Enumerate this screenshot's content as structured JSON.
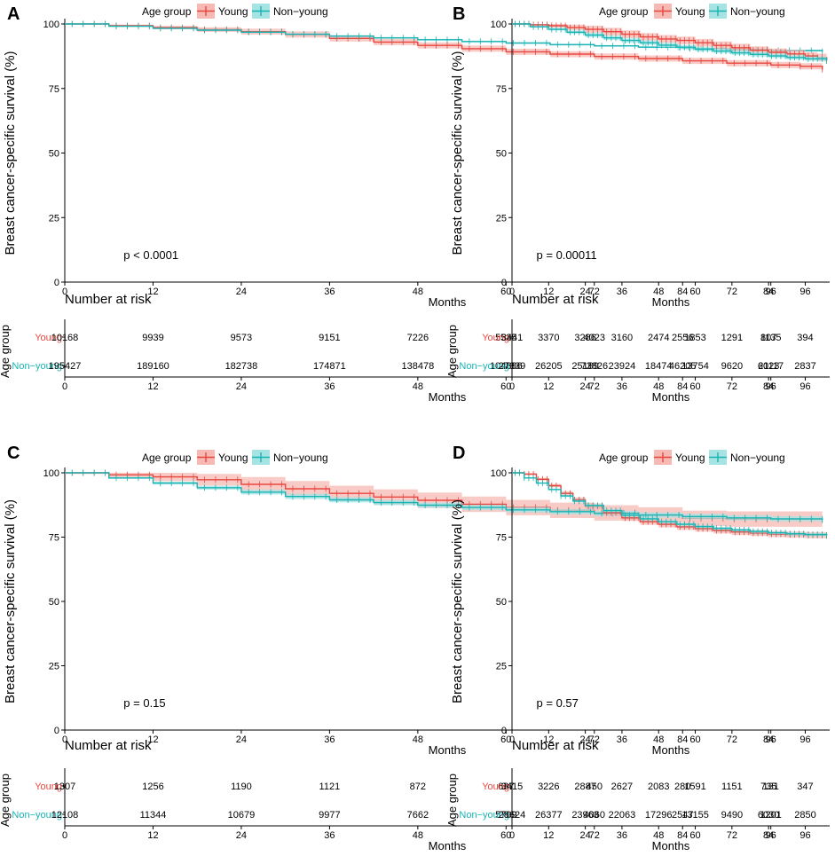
{
  "colors": {
    "young": "#E8473F",
    "young_band": "#F7B9B4",
    "nonyoung": "#18B4B4",
    "nonyoung_band": "#A6E3E3",
    "text": "#000000"
  },
  "chart_data": [
    {
      "panel_label": "A",
      "type": "line",
      "title": "",
      "xlabel": "Months",
      "ylabel": "Breast cancer-specific survival (%)",
      "xlim": [
        0,
        104
      ],
      "ylim": [
        0,
        100
      ],
      "xticks": [
        "0",
        "12",
        "24",
        "36",
        "48",
        "60",
        "72",
        "84",
        "96"
      ],
      "yticks": [
        "0",
        "25",
        "50",
        "75",
        "100"
      ],
      "legend_title": "Age group",
      "legend": [
        "Young",
        "Non−young"
      ],
      "pvalue": "p < 0.0001",
      "band": {
        "young": 1.2,
        "nonyoung": 0.3
      },
      "series": [
        {
          "name": "Young",
          "x": [
            0,
            6,
            12,
            18,
            24,
            30,
            36,
            42,
            48,
            54,
            60,
            66,
            72,
            78,
            84,
            90,
            96,
            100,
            103
          ],
          "values": [
            100,
            99.3,
            98.6,
            97.8,
            97,
            95.9,
            94.4,
            93,
            91.7,
            90.4,
            89.2,
            88.3,
            87.4,
            86.6,
            85.7,
            84.8,
            84.1,
            83.6,
            82.4
          ]
        },
        {
          "name": "Non−young",
          "x": [
            0,
            6,
            12,
            18,
            24,
            30,
            36,
            42,
            48,
            54,
            60,
            66,
            72,
            78,
            84,
            90,
            96,
            103
          ],
          "values": [
            100,
            99.1,
            98.3,
            97.6,
            96.8,
            96,
            95.3,
            94.6,
            93.9,
            93.2,
            92.6,
            92,
            91.5,
            91,
            90.5,
            90.1,
            89.7,
            89.2
          ]
        }
      ],
      "risk_title": "Number at risk",
      "risk_ylabel": "Age group",
      "risk_rows": [
        {
          "name": "Young",
          "values": [
            "10168",
            "9939",
            "9573",
            "9151",
            "7226",
            "5535",
            "4023",
            "2556",
            "1135"
          ]
        },
        {
          "name": "Non−young",
          "values": [
            "195427",
            "189160",
            "182738",
            "174871",
            "138478",
            "104886",
            "73826",
            "46205",
            "21117"
          ]
        }
      ]
    },
    {
      "panel_label": "B",
      "type": "line",
      "title": "",
      "xlabel": "Months",
      "ylabel": "Breast cancer-specific survival (%)",
      "xlim": [
        0,
        104
      ],
      "ylim": [
        0,
        100
      ],
      "xticks": [
        "0",
        "12",
        "24",
        "36",
        "48",
        "60",
        "72",
        "84",
        "96"
      ],
      "yticks": [
        "0",
        "25",
        "50",
        "75",
        "100"
      ],
      "legend_title": "Age group",
      "legend": [
        "Young",
        "Non−young"
      ],
      "pvalue": "p = 0.00011",
      "band": {
        "young": 1.5,
        "nonyoung": 0.8
      },
      "series": [
        {
          "name": "Young",
          "x": [
            0,
            6,
            12,
            18,
            24,
            30,
            36,
            42,
            48,
            54,
            60,
            66,
            72,
            78,
            84,
            90,
            96,
            100,
            103
          ],
          "values": [
            100,
            99.7,
            99.3,
            98.6,
            97.9,
            97,
            96,
            95,
            94.2,
            93.6,
            92.7,
            91.7,
            90.8,
            89.8,
            89,
            88.4,
            87.6,
            87,
            85.8
          ]
        },
        {
          "name": "Non−young",
          "x": [
            0,
            6,
            12,
            18,
            24,
            30,
            36,
            42,
            48,
            54,
            60,
            66,
            72,
            78,
            84,
            90,
            96,
            103
          ],
          "values": [
            100,
            98.9,
            97.9,
            96.8,
            95.7,
            94.6,
            93.6,
            92.7,
            91.8,
            91,
            90.2,
            89.5,
            88.8,
            88.2,
            87.6,
            87,
            86.5,
            85.8
          ]
        }
      ],
      "risk_title": "Number at risk",
      "risk_ylabel": "Age group",
      "risk_rows": [
        {
          "name": "Young",
          "values": [
            "3441",
            "3370",
            "3286",
            "3160",
            "2474",
            "1853",
            "1291",
            "807",
            "394"
          ]
        },
        {
          "name": "Non−young",
          "values": [
            "27339",
            "26205",
            "25189",
            "23924",
            "18474",
            "13754",
            "9620",
            "6023",
            "2837"
          ]
        }
      ]
    },
    {
      "panel_label": "C",
      "type": "line",
      "title": "",
      "xlabel": "Months",
      "ylabel": "Breast cancer-specific survival (%)",
      "xlim": [
        0,
        104
      ],
      "ylim": [
        0,
        100
      ],
      "xticks": [
        "0",
        "12",
        "24",
        "36",
        "48",
        "60",
        "72",
        "84",
        "96"
      ],
      "yticks": [
        "0",
        "25",
        "50",
        "75",
        "100"
      ],
      "legend_title": "Age group",
      "legend": [
        "Young",
        "Non−young"
      ],
      "pvalue": "p = 0.15",
      "band": {
        "young": 3.0,
        "nonyoung": 1.0
      },
      "series": [
        {
          "name": "Young",
          "x": [
            0,
            6,
            12,
            18,
            24,
            30,
            36,
            42,
            48,
            54,
            60,
            66,
            72,
            78,
            84,
            90,
            96,
            103
          ],
          "values": [
            100,
            99.2,
            98.4,
            97.3,
            95.5,
            93.8,
            92,
            90.6,
            89.3,
            87.8,
            86.5,
            85.4,
            84.4,
            83.6,
            82.3,
            82,
            82,
            82
          ]
        },
        {
          "name": "Non−young",
          "x": [
            0,
            6,
            12,
            18,
            24,
            30,
            36,
            42,
            48,
            54,
            60,
            66,
            72,
            78,
            84,
            90,
            96,
            103
          ],
          "values": [
            100,
            98,
            96,
            94.2,
            92.5,
            90.8,
            89.5,
            88.4,
            87.4,
            86.5,
            85.6,
            84.9,
            84.2,
            83.6,
            83,
            82.5,
            82.1,
            81.7
          ]
        }
      ],
      "risk_title": "Number at risk",
      "risk_ylabel": "Age group",
      "risk_rows": [
        {
          "name": "Young",
          "values": [
            "1307",
            "1256",
            "1190",
            "1121",
            "872",
            "637",
            "450",
            "280",
            "131"
          ]
        },
        {
          "name": "Non−young",
          "values": [
            "12108",
            "11344",
            "10679",
            "9977",
            "7662",
            "5709",
            "4060",
            "2547",
            "1201"
          ]
        }
      ]
    },
    {
      "panel_label": "D",
      "type": "line",
      "title": "",
      "xlabel": "Months",
      "ylabel": "Breast cancer-specific survival (%)",
      "xlim": [
        0,
        104
      ],
      "ylim": [
        0,
        100
      ],
      "xticks": [
        "0",
        "12",
        "24",
        "36",
        "48",
        "60",
        "72",
        "84",
        "96"
      ],
      "yticks": [
        "0",
        "25",
        "50",
        "75",
        "100"
      ],
      "legend_title": "Age group",
      "legend": [
        "Young",
        "Non−young"
      ],
      "pvalue": "p = 0.57",
      "band": {
        "young": 1.2,
        "nonyoung": 0.5
      },
      "series": [
        {
          "name": "Young",
          "x": [
            0,
            4,
            8,
            12,
            16,
            20,
            24,
            30,
            36,
            42,
            48,
            54,
            60,
            66,
            72,
            78,
            84,
            90,
            96,
            103
          ],
          "values": [
            100,
            99.5,
            97.5,
            95,
            92,
            89.5,
            87,
            84.5,
            82.5,
            81,
            80,
            79,
            78.3,
            77.6,
            77,
            76.6,
            76.2,
            76,
            75.8,
            75.6
          ]
        },
        {
          "name": "Non−young",
          "x": [
            0,
            4,
            8,
            12,
            16,
            20,
            24,
            30,
            36,
            42,
            48,
            54,
            60,
            66,
            72,
            78,
            84,
            90,
            96,
            103
          ],
          "values": [
            100,
            98,
            96,
            93.5,
            91,
            89,
            87.3,
            85.3,
            83.5,
            82.1,
            81,
            80,
            79.1,
            78.4,
            77.8,
            77.2,
            76.7,
            76.3,
            76,
            75.7
          ]
        }
      ],
      "risk_title": "Number at risk",
      "risk_ylabel": "Age group",
      "risk_rows": [
        {
          "name": "Young",
          "values": [
            "3415",
            "3226",
            "2887",
            "2627",
            "2083",
            "1591",
            "1151",
            "735",
            "347"
          ]
        },
        {
          "name": "Non−young",
          "values": [
            "28624",
            "26377",
            "23963",
            "22063",
            "17296",
            "13155",
            "9490",
            "6030",
            "2850"
          ]
        }
      ]
    }
  ]
}
